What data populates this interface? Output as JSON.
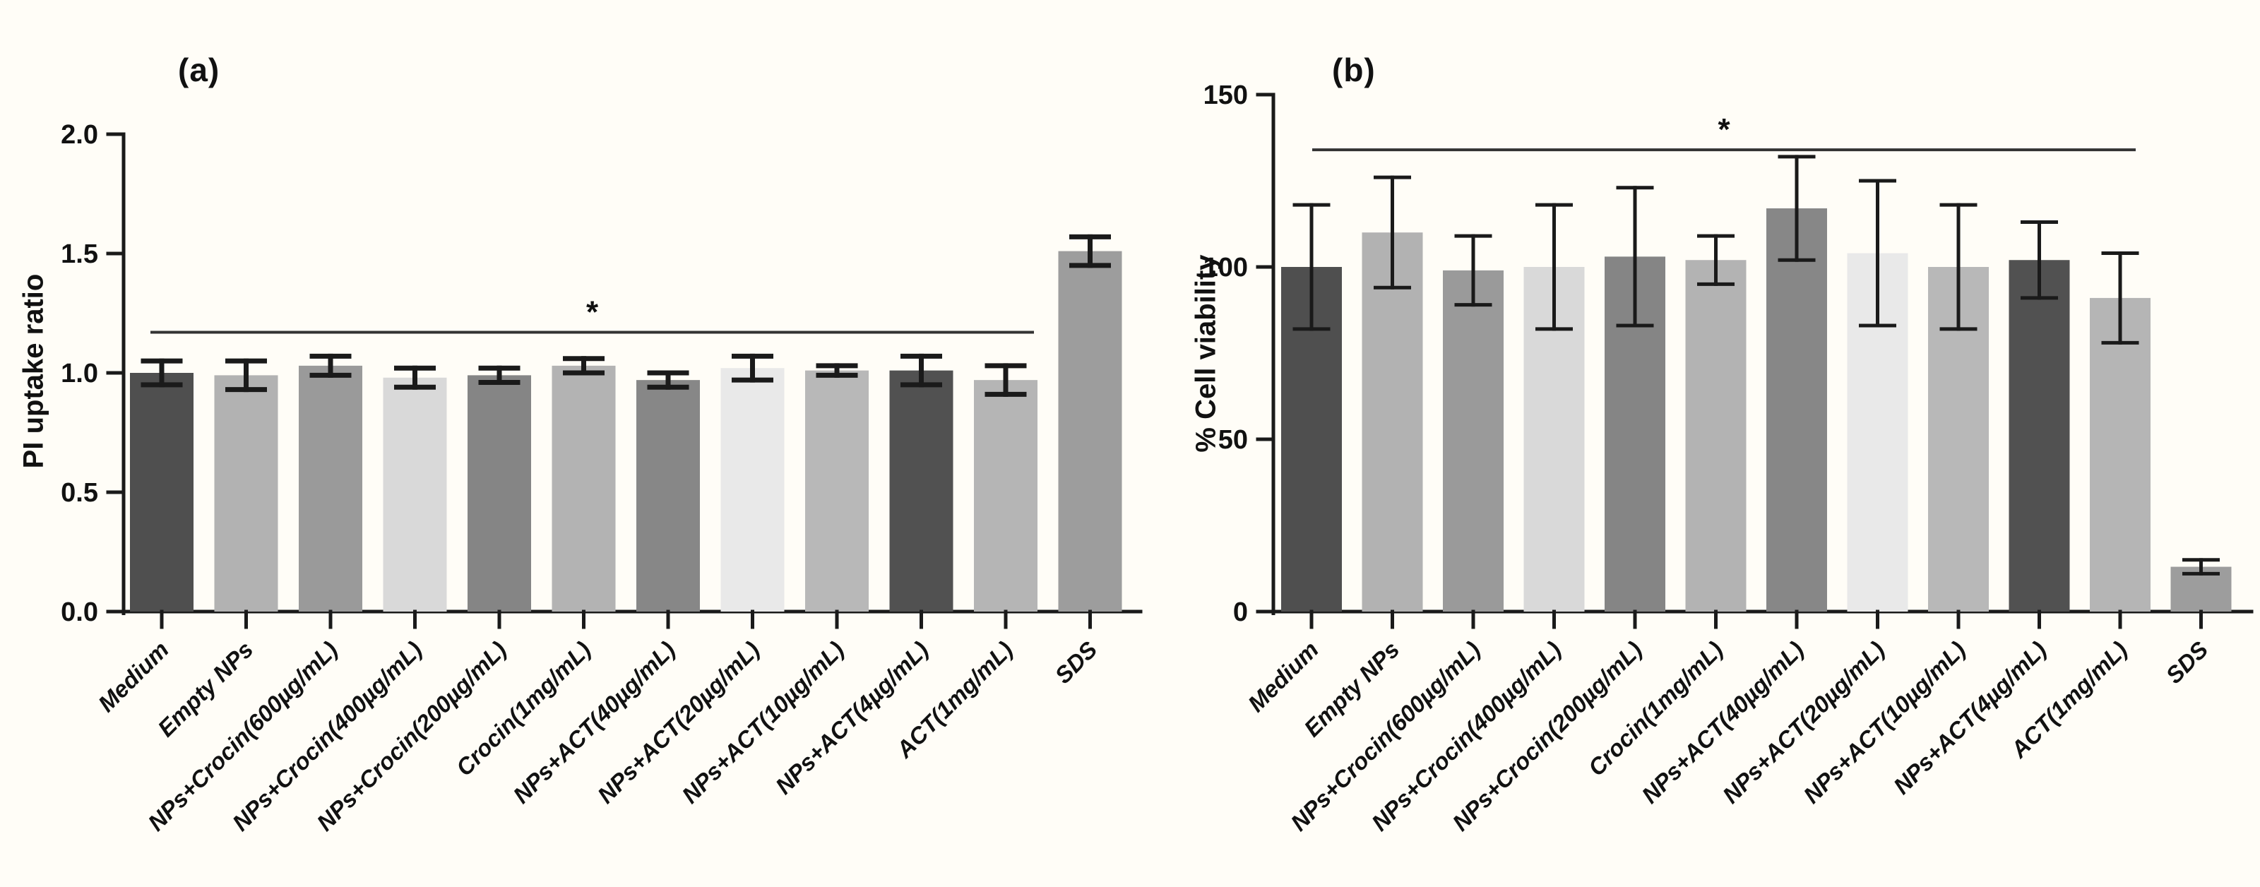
{
  "page": {
    "background": "#fffdf7"
  },
  "chart_data": [
    {
      "type": "bar",
      "panel_label": "(a)",
      "title": "",
      "xlabel": "",
      "ylabel": "PI uptake ratio",
      "ylim": [
        0,
        2.0
      ],
      "yticks": [
        "0.0",
        "0.5",
        "1.0",
        "1.5",
        "2.0"
      ],
      "grid": false,
      "legend": null,
      "categories": [
        "Medium",
        "Empty NPs",
        "NPs+Crocin(600µg/mL)",
        "NPs+Crocin(400µg/mL)",
        "NPs+Crocin(200µg/mL)",
        "Crocin(1mg/mL)",
        "NPs+ACT(40µg/mL)",
        "NPs+ACT(20µg/mL)",
        "NPs+ACT(10µg/mL)",
        "NPs+ACT(4µg/mL)",
        "ACT(1mg/mL)",
        "SDS"
      ],
      "values": [
        1.0,
        0.99,
        1.03,
        0.98,
        0.99,
        1.03,
        0.97,
        1.02,
        1.01,
        1.01,
        0.97,
        1.51
      ],
      "errors": [
        0.05,
        0.06,
        0.04,
        0.04,
        0.03,
        0.03,
        0.03,
        0.05,
        0.02,
        0.06,
        0.06,
        0.06
      ],
      "bar_colors": [
        "#4f4f4f",
        "#b2b2b2",
        "#9a9a9a",
        "#d9d9d9",
        "#858585",
        "#b3b3b3",
        "#878787",
        "#e9e9e9",
        "#b8b8b8",
        "#515151",
        "#b5b5b5",
        "#9d9d9d"
      ],
      "significance": {
        "marker": "*",
        "line_y": 1.17,
        "from_category": "Medium",
        "to_category": "ACT(1mg/mL)"
      }
    },
    {
      "type": "bar",
      "panel_label": "(b)",
      "title": "",
      "xlabel": "",
      "ylabel": "% Cell viability",
      "ylim": [
        0,
        150
      ],
      "yticks": [
        "0",
        "50",
        "100",
        "150"
      ],
      "grid": false,
      "legend": null,
      "categories": [
        "Medium",
        "Empty NPs",
        "NPs+Crocin(600µg/mL)",
        "NPs+Crocin(400µg/mL)",
        "NPs+Crocin(200µg/mL)",
        "Crocin(1mg/mL)",
        "NPs+ACT(40µg/mL)",
        "NPs+ACT(20µg/mL)",
        "NPs+ACT(10µg/mL)",
        "NPs+ACT(4µg/mL)",
        "ACT(1mg/mL)",
        "SDS"
      ],
      "values": [
        100,
        110,
        99,
        100,
        103,
        102,
        117,
        104,
        100,
        102,
        91,
        13
      ],
      "errors": [
        18,
        16,
        10,
        18,
        20,
        7,
        15,
        21,
        18,
        11,
        13,
        2
      ],
      "bar_colors": [
        "#4f4f4f",
        "#b2b2b2",
        "#9a9a9a",
        "#d9d9d9",
        "#858585",
        "#b3b3b3",
        "#878787",
        "#e9e9e9",
        "#b8b8b8",
        "#515151",
        "#b5b5b5",
        "#9d9d9d"
      ],
      "significance": {
        "marker": "*",
        "line_y": 134,
        "from_category": "Medium",
        "to_category": "ACT(1mg/mL)"
      }
    }
  ]
}
